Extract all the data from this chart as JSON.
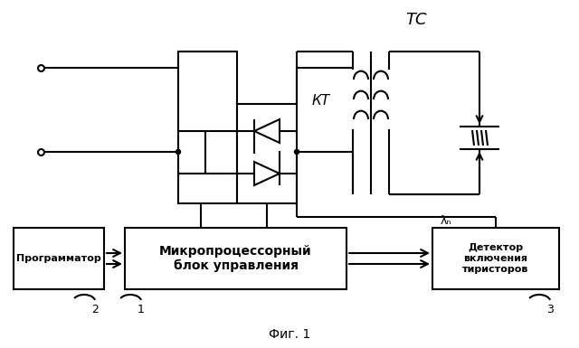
{
  "background_color": "#ffffff",
  "fig_caption": "Фиг. 1",
  "label_TC": "TC",
  "label_KT": "КТ",
  "label_lambda": "λₙ",
  "label_prog": "Программатор",
  "label_micro": "Микропроцессорный\nблок управления",
  "label_detector": "Детектор\nвключения\nтиристоров",
  "num_prog": "2",
  "num_micro": "1",
  "num_detector": "3",
  "line_color": "#000000",
  "lw": 1.5
}
